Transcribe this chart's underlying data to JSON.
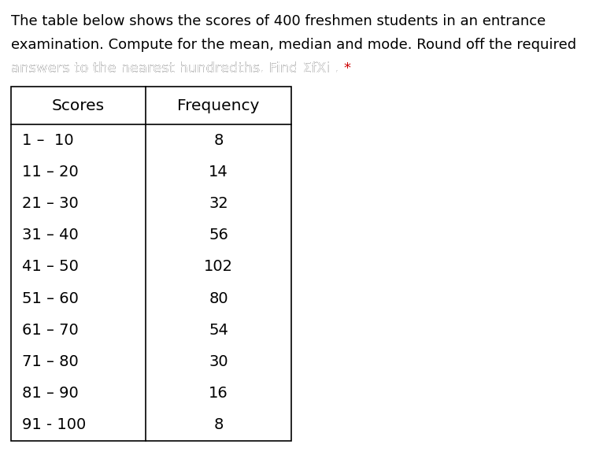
{
  "title_line1": "The table below shows the scores of 400 freshmen students in an entrance",
  "title_line2": "examination. Compute for the mean, median and mode. Round off the required",
  "title_line3": "answers to the nearest hundredths. Find ΣfXi . ",
  "title_star": "*",
  "header_scores": "Scores",
  "header_frequency": "Frequency",
  "scores": [
    "1 –  10",
    "11 – 20",
    "21 – 30",
    "31 – 40",
    "41 – 50",
    "51 – 60",
    "61 – 70",
    "71 – 80",
    "81 – 90",
    "91 - 100"
  ],
  "frequencies": [
    "8",
    "14",
    "32",
    "56",
    "102",
    "80",
    "54",
    "30",
    "16",
    "8"
  ],
  "bg_color": "#ffffff",
  "text_color": "#000000",
  "star_color": "#cc0000",
  "title_fontsize": 13.0,
  "header_fontsize": 14.5,
  "data_fontsize": 14.0,
  "fig_width": 7.52,
  "fig_height": 5.83,
  "dpi": 100
}
